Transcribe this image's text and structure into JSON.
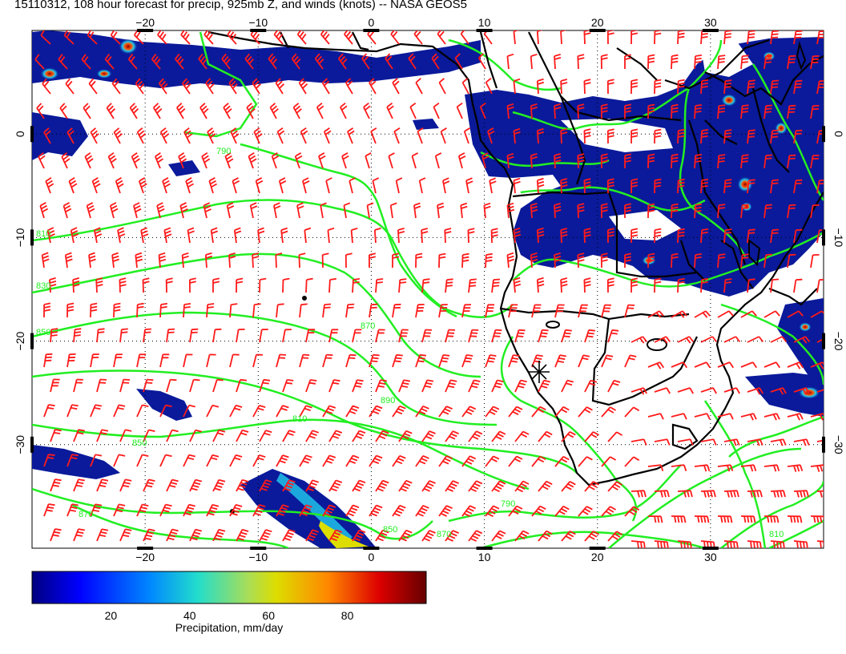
{
  "title": "15110312, 108 hour forecast for precip, 925mb Z, and winds (knots) -- NASA GEOS5",
  "map": {
    "lon_ticks": [
      "−20",
      "−10",
      "0",
      "10",
      "20",
      "30"
    ],
    "lon_values": [
      -20,
      -10,
      0,
      10,
      20,
      30
    ],
    "lat_ticks": [
      "0",
      "−10",
      "−20",
      "−30"
    ],
    "lat_values": [
      0,
      -10,
      -20,
      -30
    ],
    "extent": {
      "lon": [
        -30,
        40
      ],
      "lat": [
        -40,
        10
      ]
    },
    "contour_labels": [
      "790",
      "810",
      "830",
      "850",
      "870",
      "890",
      "810",
      "850",
      "870",
      "850",
      "870",
      "790",
      "810"
    ],
    "colors": {
      "contour": "#22ee22",
      "wind_barb": "#ff1a1a",
      "coast": "#000000",
      "grid": "#000000"
    },
    "marker_icon": "asterisk-marker-icon"
  },
  "colorbar": {
    "ticks": [
      "20",
      "40",
      "60",
      "80"
    ],
    "tick_values": [
      20,
      40,
      60,
      80
    ],
    "range": [
      0,
      100
    ],
    "title": "Precipitation, mm/day"
  }
}
